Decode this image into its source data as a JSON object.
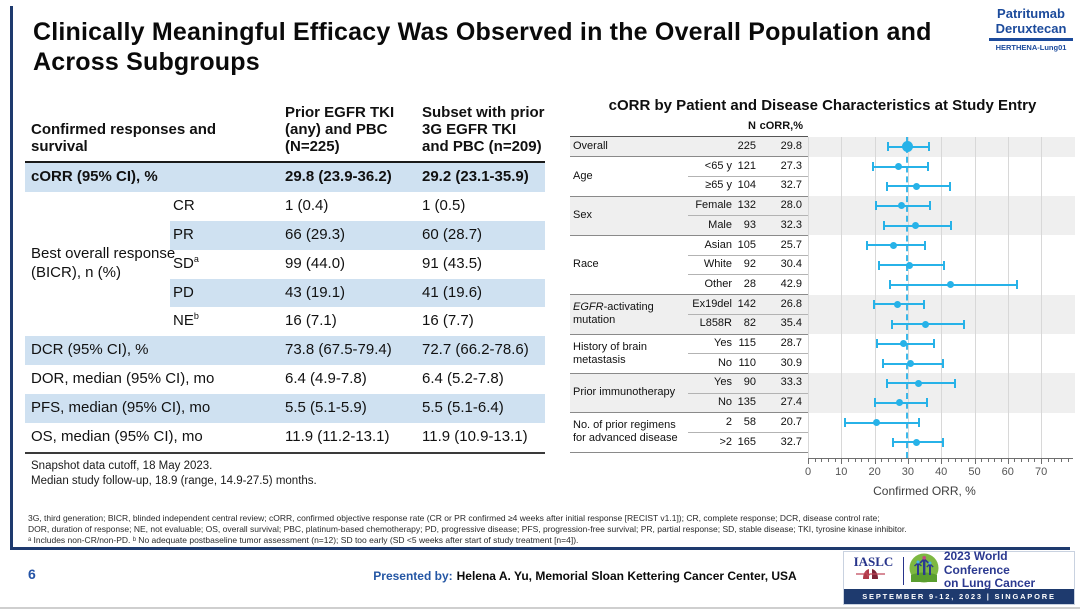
{
  "slide": {
    "title": "Clinically Meaningful Efficacy Was Observed in the Overall Population and Across Subgroups",
    "page_number": "6"
  },
  "colors": {
    "template_navy": "#1e3a6e",
    "highlight_blue": "#cfe1f1",
    "forest_cyan": "#27b2e8",
    "drug_logo_blue": "#1c4b9c"
  },
  "drug_logo": {
    "line1": "Patritumab",
    "line2": "Deruxtecan",
    "trial": "HERTHENA-Lung01"
  },
  "response_table": {
    "header": {
      "col_label": "Confirmed responses and survival",
      "col1": "Prior EGFR TKI (any) and PBC (N=225)",
      "col2": "Subset with prior 3G EGFR TKI and PBC (n=209)"
    },
    "group_label": "Best overall response (BICR), n (%)",
    "rows": [
      {
        "label": "cORR (95% CI), %",
        "v1": "29.8 (23.9-36.2)",
        "v2": "29.2 (23.1-35.9)",
        "highlight": true,
        "bold": true
      },
      {
        "sub": "CR",
        "v1": "1 (0.4)",
        "v2": "1 (0.5)",
        "highlight": false
      },
      {
        "sub": "PR",
        "v1": "66 (29.3)",
        "v2": "60 (28.7)",
        "highlight": true
      },
      {
        "sub": "SD",
        "sup": "a",
        "v1": "99 (44.0)",
        "v2": "91 (43.5)",
        "highlight": false
      },
      {
        "sub": "PD",
        "v1": "43 (19.1)",
        "v2": "41 (19.6)",
        "highlight": true
      },
      {
        "sub": "NE",
        "sup": "b",
        "v1": "16 (7.1)",
        "v2": "16 (7.7)",
        "highlight": false
      },
      {
        "label": "DCR (95% CI), %",
        "v1": "73.8 (67.5-79.4)",
        "v2": "72.7 (66.2-78.6)",
        "highlight": true
      },
      {
        "label": "DOR, median (95% CI), mo",
        "v1": "6.4 (4.9-7.8)",
        "v2": "6.4 (5.2-7.8)",
        "highlight": false
      },
      {
        "label": "PFS, median (95% CI), mo",
        "v1": "5.5 (5.1-5.9)",
        "v2": "5.5 (5.1-6.4)",
        "highlight": true
      },
      {
        "label": "OS, median (95% CI), mo",
        "v1": "11.9 (11.2-13.1)",
        "v2": "11.9 (10.9-13.1)",
        "highlight": false
      }
    ],
    "notes": [
      "Snapshot data cutoff, 18 May 2023.",
      "Median study follow-up, 18.9 (range, 14.9-27.5) months."
    ]
  },
  "chart_data": {
    "type": "forest",
    "title": "cORR by Patient and Disease Characteristics at Study Entry",
    "columns": {
      "n": "N",
      "orr": "cORR,%"
    },
    "xlabel": "Confirmed ORR, %",
    "x_ticks": [
      0,
      10,
      20,
      30,
      40,
      50,
      60,
      70
    ],
    "xlim": [
      0,
      80
    ],
    "ref_line": 29.8,
    "marker_color": "#27b2e8",
    "groups": [
      {
        "label": "Overall",
        "shade": true,
        "rows": [
          {
            "sub": "",
            "n": "225",
            "orr": "29.8",
            "ci": [
              23.9,
              36.2
            ],
            "big": true
          }
        ]
      },
      {
        "label": "Age",
        "shade": false,
        "rows": [
          {
            "sub": "<65 y",
            "n": "121",
            "orr": "27.3",
            "ci": [
              19.6,
              36.1
            ]
          },
          {
            "sub": "≥65 y",
            "n": "104",
            "orr": "32.7",
            "ci": [
              23.8,
              42.6
            ]
          }
        ]
      },
      {
        "label": "Sex",
        "shade": true,
        "rows": [
          {
            "sub": "Female",
            "n": "132",
            "orr": "28.0",
            "ci": [
              20.5,
              36.6
            ]
          },
          {
            "sub": "Male",
            "n": "93",
            "orr": "32.3",
            "ci": [
              22.9,
              42.9
            ]
          }
        ]
      },
      {
        "label": "Race",
        "shade": false,
        "rows": [
          {
            "sub": "Asian",
            "n": "105",
            "orr": "25.7",
            "ci": [
              17.7,
              35.2
            ]
          },
          {
            "sub": "White",
            "n": "92",
            "orr": "30.4",
            "ci": [
              21.3,
              40.9
            ]
          },
          {
            "sub": "Other",
            "n": "28",
            "orr": "42.9",
            "ci": [
              24.5,
              62.8
            ]
          }
        ]
      },
      {
        "label": "-activating mutation",
        "label_italic_prefix": "EGFR",
        "shade": true,
        "rows": [
          {
            "sub": "Ex19del",
            "n": "142",
            "orr": "26.8",
            "ci": [
              19.7,
              34.8
            ]
          },
          {
            "sub": "L858R",
            "n": "82",
            "orr": "35.4",
            "ci": [
              25.1,
              46.7
            ]
          }
        ]
      },
      {
        "label": "History of brain metastasis",
        "shade": false,
        "rows": [
          {
            "sub": "Yes",
            "n": "115",
            "orr": "28.7",
            "ci": [
              20.6,
              37.9
            ]
          },
          {
            "sub": "No",
            "n": "110",
            "orr": "30.9",
            "ci": [
              22.4,
              40.4
            ]
          }
        ]
      },
      {
        "label": "Prior immunotherapy",
        "shade": true,
        "rows": [
          {
            "sub": "Yes",
            "n": "90",
            "orr": "33.3",
            "ci": [
              23.7,
              44.1
            ]
          },
          {
            "sub": "No",
            "n": "135",
            "orr": "27.4",
            "ci": [
              20.1,
              35.7
            ]
          }
        ]
      },
      {
        "label": "No. of prior regimens for advanced disease",
        "shade": false,
        "rows": [
          {
            "sub": "2",
            "n": "58",
            "orr": "20.7",
            "ci": [
              11.2,
              33.4
            ]
          },
          {
            "sub": ">2",
            "n": "165",
            "orr": "32.7",
            "ci": [
              25.6,
              40.5
            ]
          }
        ]
      }
    ]
  },
  "footnotes": [
    "3G, third generation; BICR, blinded independent central review; cORR, confirmed objective response rate (CR or PR confirmed ≥4 weeks after initial response [RECIST v1.1]); CR, complete response; DCR, disease control rate;",
    "DOR, duration of response; NE, not evaluable; OS, overall survival; PBC, platinum-based chemotherapy; PD, progressive disease; PFS, progression-free survival; PR, partial response; SD, stable disease; TKI, tyrosine kinase inhibitor.",
    "ᵃ Includes non-CR/non-PD. ᵇ No adequate postbaseline tumor assessment (n=12); SD too early (SD <5 weeks after start of study treatment [n=4])."
  ],
  "footer": {
    "presented_by_label": "Presented by:",
    "presenter": "Helena A. Yu, Memorial Sloan Kettering Cancer Center, USA",
    "conference": {
      "org": "IASLC",
      "name_line1": "2023 World Conference",
      "name_line2": "on Lung Cancer",
      "banner": "SEPTEMBER 9-12, 2023  |  SINGAPORE"
    }
  }
}
